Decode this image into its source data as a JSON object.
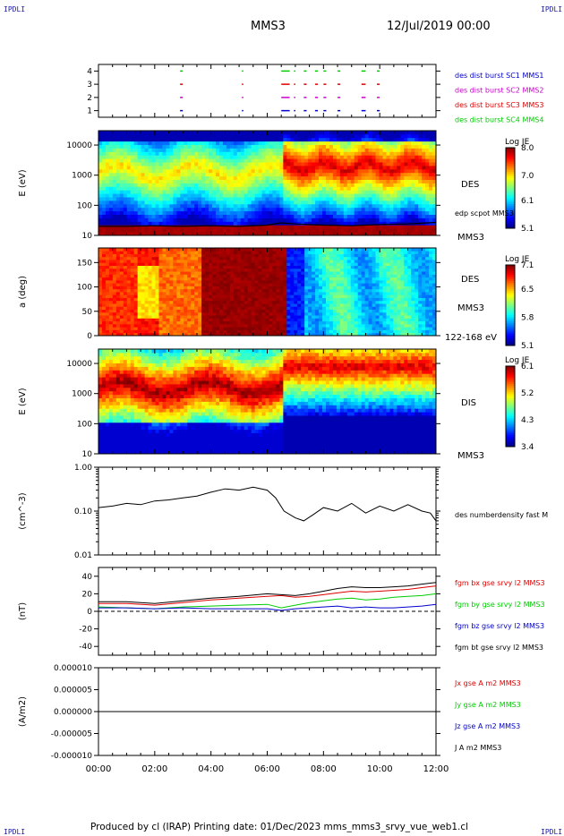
{
  "header": {
    "corner_label": "IPDLI",
    "spacecraft": "MMS3",
    "date": "12/Jul/2019 00:00"
  },
  "footer": {
    "text": "Produced by cl (IRAP)   Printing date: 01/Dec/2023   mms_mms3_srvy_vue_web1.cl"
  },
  "colors": {
    "mms1": "#0000cc",
    "mms2": "#cc00cc",
    "mms3": "#dd0000",
    "mms4": "#00cc00",
    "bx": "#dd0000",
    "by": "#00cc00",
    "bz": "#0000cc",
    "bt": "#000000"
  },
  "chart_data": [
    {
      "id": "burst",
      "type": "scatter",
      "ylabel": "",
      "yticks": [
        "1",
        "2",
        "3",
        "4"
      ],
      "ylim": [
        0.5,
        4.5
      ],
      "xlim_hours": [
        0,
        12
      ],
      "legend": [
        "des dist burst SC1 MMS1",
        "des dist burst SC2 MMS2",
        "des dist burst SC3 MMS3",
        "des dist burst SC4 MMS4"
      ],
      "segments_hours": [
        [
          2.9,
          3.0
        ],
        [
          5.1,
          5.15
        ],
        [
          6.5,
          6.8
        ],
        [
          6.95,
          7.0
        ],
        [
          7.3,
          7.4
        ],
        [
          7.7,
          7.8
        ],
        [
          8.0,
          8.1
        ],
        [
          8.5,
          8.6
        ],
        [
          9.35,
          9.5
        ],
        [
          9.9,
          10.0
        ]
      ]
    },
    {
      "id": "des-energy",
      "type": "heatmap",
      "ylabel": "E (eV)",
      "yscale": "log",
      "ylim": [
        10,
        30000
      ],
      "yticks": [
        "10",
        "100",
        "1000",
        "10000"
      ],
      "right_label": "DES",
      "sub_label": "edp scpot MMS3",
      "bottom_label": "MMS3",
      "colorbar": {
        "title": "Log JE",
        "ticks": [
          "8.0",
          "7.0",
          "6.1",
          "5.1"
        ],
        "range": [
          5.1,
          8.0
        ]
      },
      "scpot_line": {
        "x": [
          0,
          1,
          2,
          3,
          4,
          5,
          6,
          6.5,
          7,
          8,
          9,
          10,
          11,
          12
        ],
        "y": [
          20,
          20,
          21,
          20,
          21,
          20,
          22,
          26,
          24,
          22,
          21,
          23,
          24,
          27
        ]
      }
    },
    {
      "id": "des-pitch",
      "type": "heatmap",
      "ylabel": "a (deg)",
      "ylim": [
        0,
        180
      ],
      "yticks": [
        "0",
        "50",
        "100",
        "150"
      ],
      "right_label": "DES",
      "sub_label": "MMS3",
      "bottom_label": "122-168 eV",
      "colorbar": {
        "title": "Log JE",
        "ticks": [
          "7.1",
          "6.5",
          "5.8",
          "5.1"
        ],
        "range": [
          5.1,
          7.1
        ]
      }
    },
    {
      "id": "dis-energy",
      "type": "heatmap",
      "ylabel": "E (eV)",
      "yscale": "log",
      "ylim": [
        10,
        30000
      ],
      "yticks": [
        "10",
        "100",
        "1000",
        "10000"
      ],
      "right_label": "DIS",
      "bottom_label": "MMS3",
      "colorbar": {
        "title": "Log JE",
        "ticks": [
          "6.1",
          "5.2",
          "4.3",
          "3.4"
        ],
        "range": [
          3.4,
          6.1
        ]
      }
    },
    {
      "id": "density",
      "type": "line",
      "ylabel": "(cm^-3)",
      "yscale": "log",
      "ylim": [
        0.01,
        1.0
      ],
      "yticks": [
        "0.01",
        "0.10",
        "1.00"
      ],
      "legend": [
        "des numberdensity fast M"
      ],
      "series": [
        {
          "name": "des numberdensity fast M",
          "x": [
            0,
            0.5,
            1,
            1.5,
            2,
            2.5,
            3,
            3.5,
            4,
            4.5,
            5,
            5.5,
            6,
            6.3,
            6.6,
            7,
            7.3,
            7.6,
            8,
            8.5,
            9,
            9.5,
            10,
            10.5,
            11,
            11.5,
            11.8,
            12
          ],
          "y": [
            0.12,
            0.13,
            0.15,
            0.14,
            0.17,
            0.18,
            0.2,
            0.22,
            0.27,
            0.32,
            0.3,
            0.35,
            0.3,
            0.2,
            0.1,
            0.07,
            0.06,
            0.08,
            0.12,
            0.1,
            0.15,
            0.09,
            0.13,
            0.1,
            0.14,
            0.1,
            0.09,
            0.06
          ]
        }
      ]
    },
    {
      "id": "magnetic-field",
      "type": "line",
      "ylabel": "(nT)",
      "ylim": [
        -50,
        50
      ],
      "yticks": [
        "-40",
        "-20",
        "0",
        "20",
        "40"
      ],
      "legend": [
        "fgm bx gse srvy l2 MMS3",
        "fgm by gse srvy l2 MMS3",
        "fgm bz gse srvy l2 MMS3",
        "fgm bt gse srvy l2 MMS3"
      ],
      "x": [
        0,
        1,
        2,
        3,
        4,
        5,
        6,
        6.5,
        7,
        7.5,
        8,
        8.5,
        9,
        9.5,
        10,
        10.5,
        11,
        11.5,
        12
      ],
      "series": [
        {
          "name": "fgm bx gse srvy l2 MMS3",
          "y": [
            9,
            9,
            7,
            10,
            13,
            15,
            17,
            18,
            16,
            17,
            19,
            21,
            23,
            22,
            23,
            24,
            25,
            27,
            29
          ]
        },
        {
          "name": "fgm by gse srvy l2 MMS3",
          "y": [
            5,
            4,
            3,
            5,
            6,
            7,
            8,
            4,
            7,
            10,
            12,
            14,
            15,
            13,
            14,
            16,
            17,
            18,
            20
          ]
        },
        {
          "name": "fgm bz gse srvy l2 MMS3",
          "y": [
            4,
            4,
            3,
            4,
            3,
            3,
            3,
            1,
            3,
            4,
            5,
            6,
            4,
            5,
            4,
            4,
            5,
            6,
            8
          ]
        },
        {
          "name": "fgm bt gse srvy l2 MMS3",
          "y": [
            11,
            11,
            9,
            12,
            15,
            17,
            20,
            19,
            18,
            20,
            23,
            26,
            28,
            27,
            27,
            28,
            29,
            31,
            33
          ]
        }
      ]
    },
    {
      "id": "current-density",
      "type": "line",
      "ylabel": "(A/m2)",
      "ylim": [
        -1e-05,
        1e-05
      ],
      "yticks": [
        "-0.000010",
        "-0.000005",
        "0.000000",
        "0.000005",
        "0.000010"
      ],
      "legend": [
        "Jx gse A m2 MMS3",
        "Jy gse A m2 MMS3",
        "Jz gse A m2 MMS3",
        "J A m2 MMS3"
      ],
      "x": [
        0,
        3,
        6,
        9,
        12
      ],
      "series": [
        {
          "name": "J A m2 MMS3",
          "y": [
            0,
            0,
            0,
            0,
            0
          ]
        }
      ]
    }
  ],
  "xaxis": {
    "ticks": [
      "00:00",
      "02:00",
      "04:00",
      "06:00",
      "08:00",
      "10:00",
      "12:00"
    ],
    "range_hours": [
      0,
      12
    ]
  }
}
